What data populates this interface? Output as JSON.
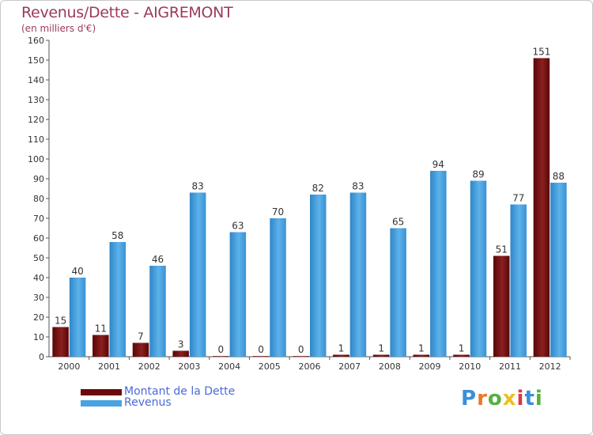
{
  "header": {
    "title": "Revenus/Dette - AIGREMONT",
    "subtitle": "(en milliers d'€)"
  },
  "legend": {
    "items": [
      {
        "label": "Montant de la Dette",
        "color": "#6b0a0a"
      },
      {
        "label": "Revenus",
        "color": "#4aa3e0"
      }
    ]
  },
  "brand": {
    "letters": [
      "P",
      "r",
      "o",
      "x",
      "i",
      "t",
      "i"
    ],
    "colors": [
      "#3a8fd8",
      "#e8792a",
      "#55b040",
      "#e8c020",
      "#d83a3a",
      "#3a8fd8",
      "#55b040"
    ]
  },
  "chart_data": {
    "type": "bar",
    "title": "Revenus/Dette - AIGREMONT",
    "ylabel": "(en milliers d'€)",
    "xlabel": "",
    "ylim": [
      0,
      160
    ],
    "ytick_step": 10,
    "grid": false,
    "legend_position": "bottom-left",
    "categories": [
      "2000",
      "2001",
      "2002",
      "2003",
      "2004",
      "2005",
      "2006",
      "2007",
      "2008",
      "2009",
      "2010",
      "2011",
      "2012"
    ],
    "series": [
      {
        "name": "Montant de la Dette",
        "color": "#6b0a0a",
        "values": [
          15,
          11,
          7,
          3,
          0,
          0,
          0,
          1,
          1,
          1,
          1,
          51,
          151
        ]
      },
      {
        "name": "Revenus",
        "color": "#4aa3e0",
        "values": [
          40,
          58,
          46,
          83,
          63,
          70,
          82,
          83,
          65,
          94,
          89,
          77,
          88
        ]
      }
    ]
  }
}
